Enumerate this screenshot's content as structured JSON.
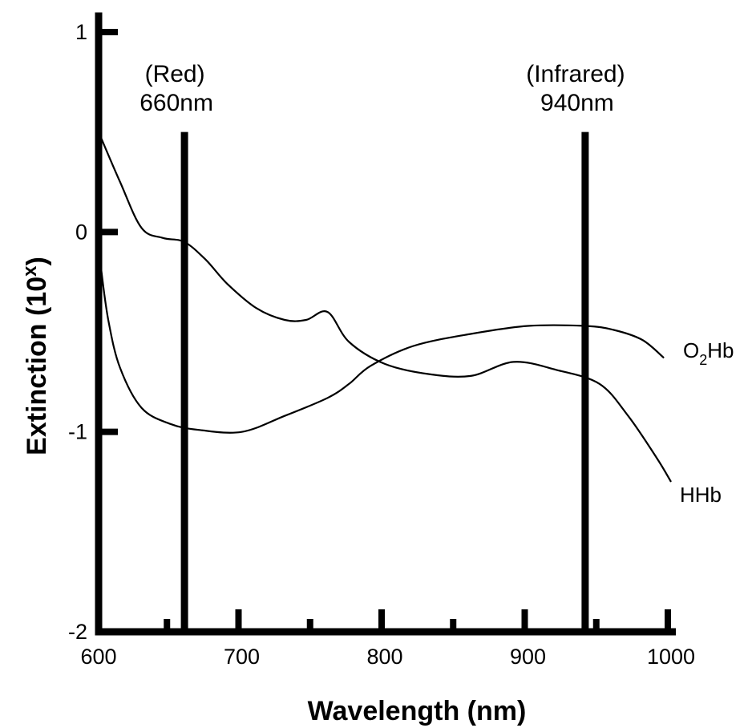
{
  "chart_data": {
    "type": "line",
    "title": "",
    "xlabel": "Wavelength (nm)",
    "ylabel": "Extinction (10",
    "ylabel_superscript": "x",
    "ylabel_close": ")",
    "xlim": [
      600,
      1000
    ],
    "ylim": [
      -2,
      1
    ],
    "xticks": [
      600,
      700,
      800,
      900,
      1000
    ],
    "xtick_labels": [
      "600",
      "700",
      "800",
      "900",
      "1000"
    ],
    "minor_xticks": [
      650,
      700,
      750,
      800,
      850,
      900,
      950,
      1000
    ],
    "yticks": [
      1,
      0,
      -1,
      -2
    ],
    "ytick_labels": [
      "1",
      "0",
      "-1",
      "-2"
    ],
    "grid": false,
    "legend": "none (series labelled at right end of curves)",
    "markers": [
      {
        "x": 660,
        "line1": "(Red)",
        "line2": "660nm",
        "top": 0.5
      },
      {
        "x": 940,
        "line1": "(Infrared)",
        "line2": "940nm",
        "top": 0.5
      }
    ],
    "series": [
      {
        "name": "O2Hb",
        "label_main": "O",
        "label_sub": "2",
        "label_rest": "Hb",
        "x": [
          600,
          615,
          630,
          645,
          660,
          675,
          690,
          710,
          730,
          745,
          760,
          775,
          800,
          830,
          860,
          890,
          920,
          950,
          970,
          990,
          1000
        ],
        "y": [
          0.5,
          0.25,
          0.02,
          -0.03,
          -0.05,
          -0.14,
          -0.26,
          -0.38,
          -0.44,
          -0.44,
          -0.4,
          -0.55,
          -0.66,
          -0.71,
          -0.72,
          -0.65,
          -0.69,
          -0.76,
          -0.92,
          -1.13,
          -1.25
        ]
      },
      {
        "name": "HHb",
        "label_main": "HHb",
        "x": [
          600,
          602,
          607,
          615,
          630,
          650,
          670,
          700,
          730,
          760,
          775,
          790,
          820,
          860,
          900,
          940,
          960,
          980,
          995
        ],
        "y": [
          -0.05,
          -0.2,
          -0.45,
          -0.68,
          -0.88,
          -0.96,
          -0.99,
          -1.0,
          -0.92,
          -0.83,
          -0.76,
          -0.67,
          -0.57,
          -0.51,
          -0.47,
          -0.47,
          -0.49,
          -0.54,
          -0.63
        ]
      }
    ]
  }
}
